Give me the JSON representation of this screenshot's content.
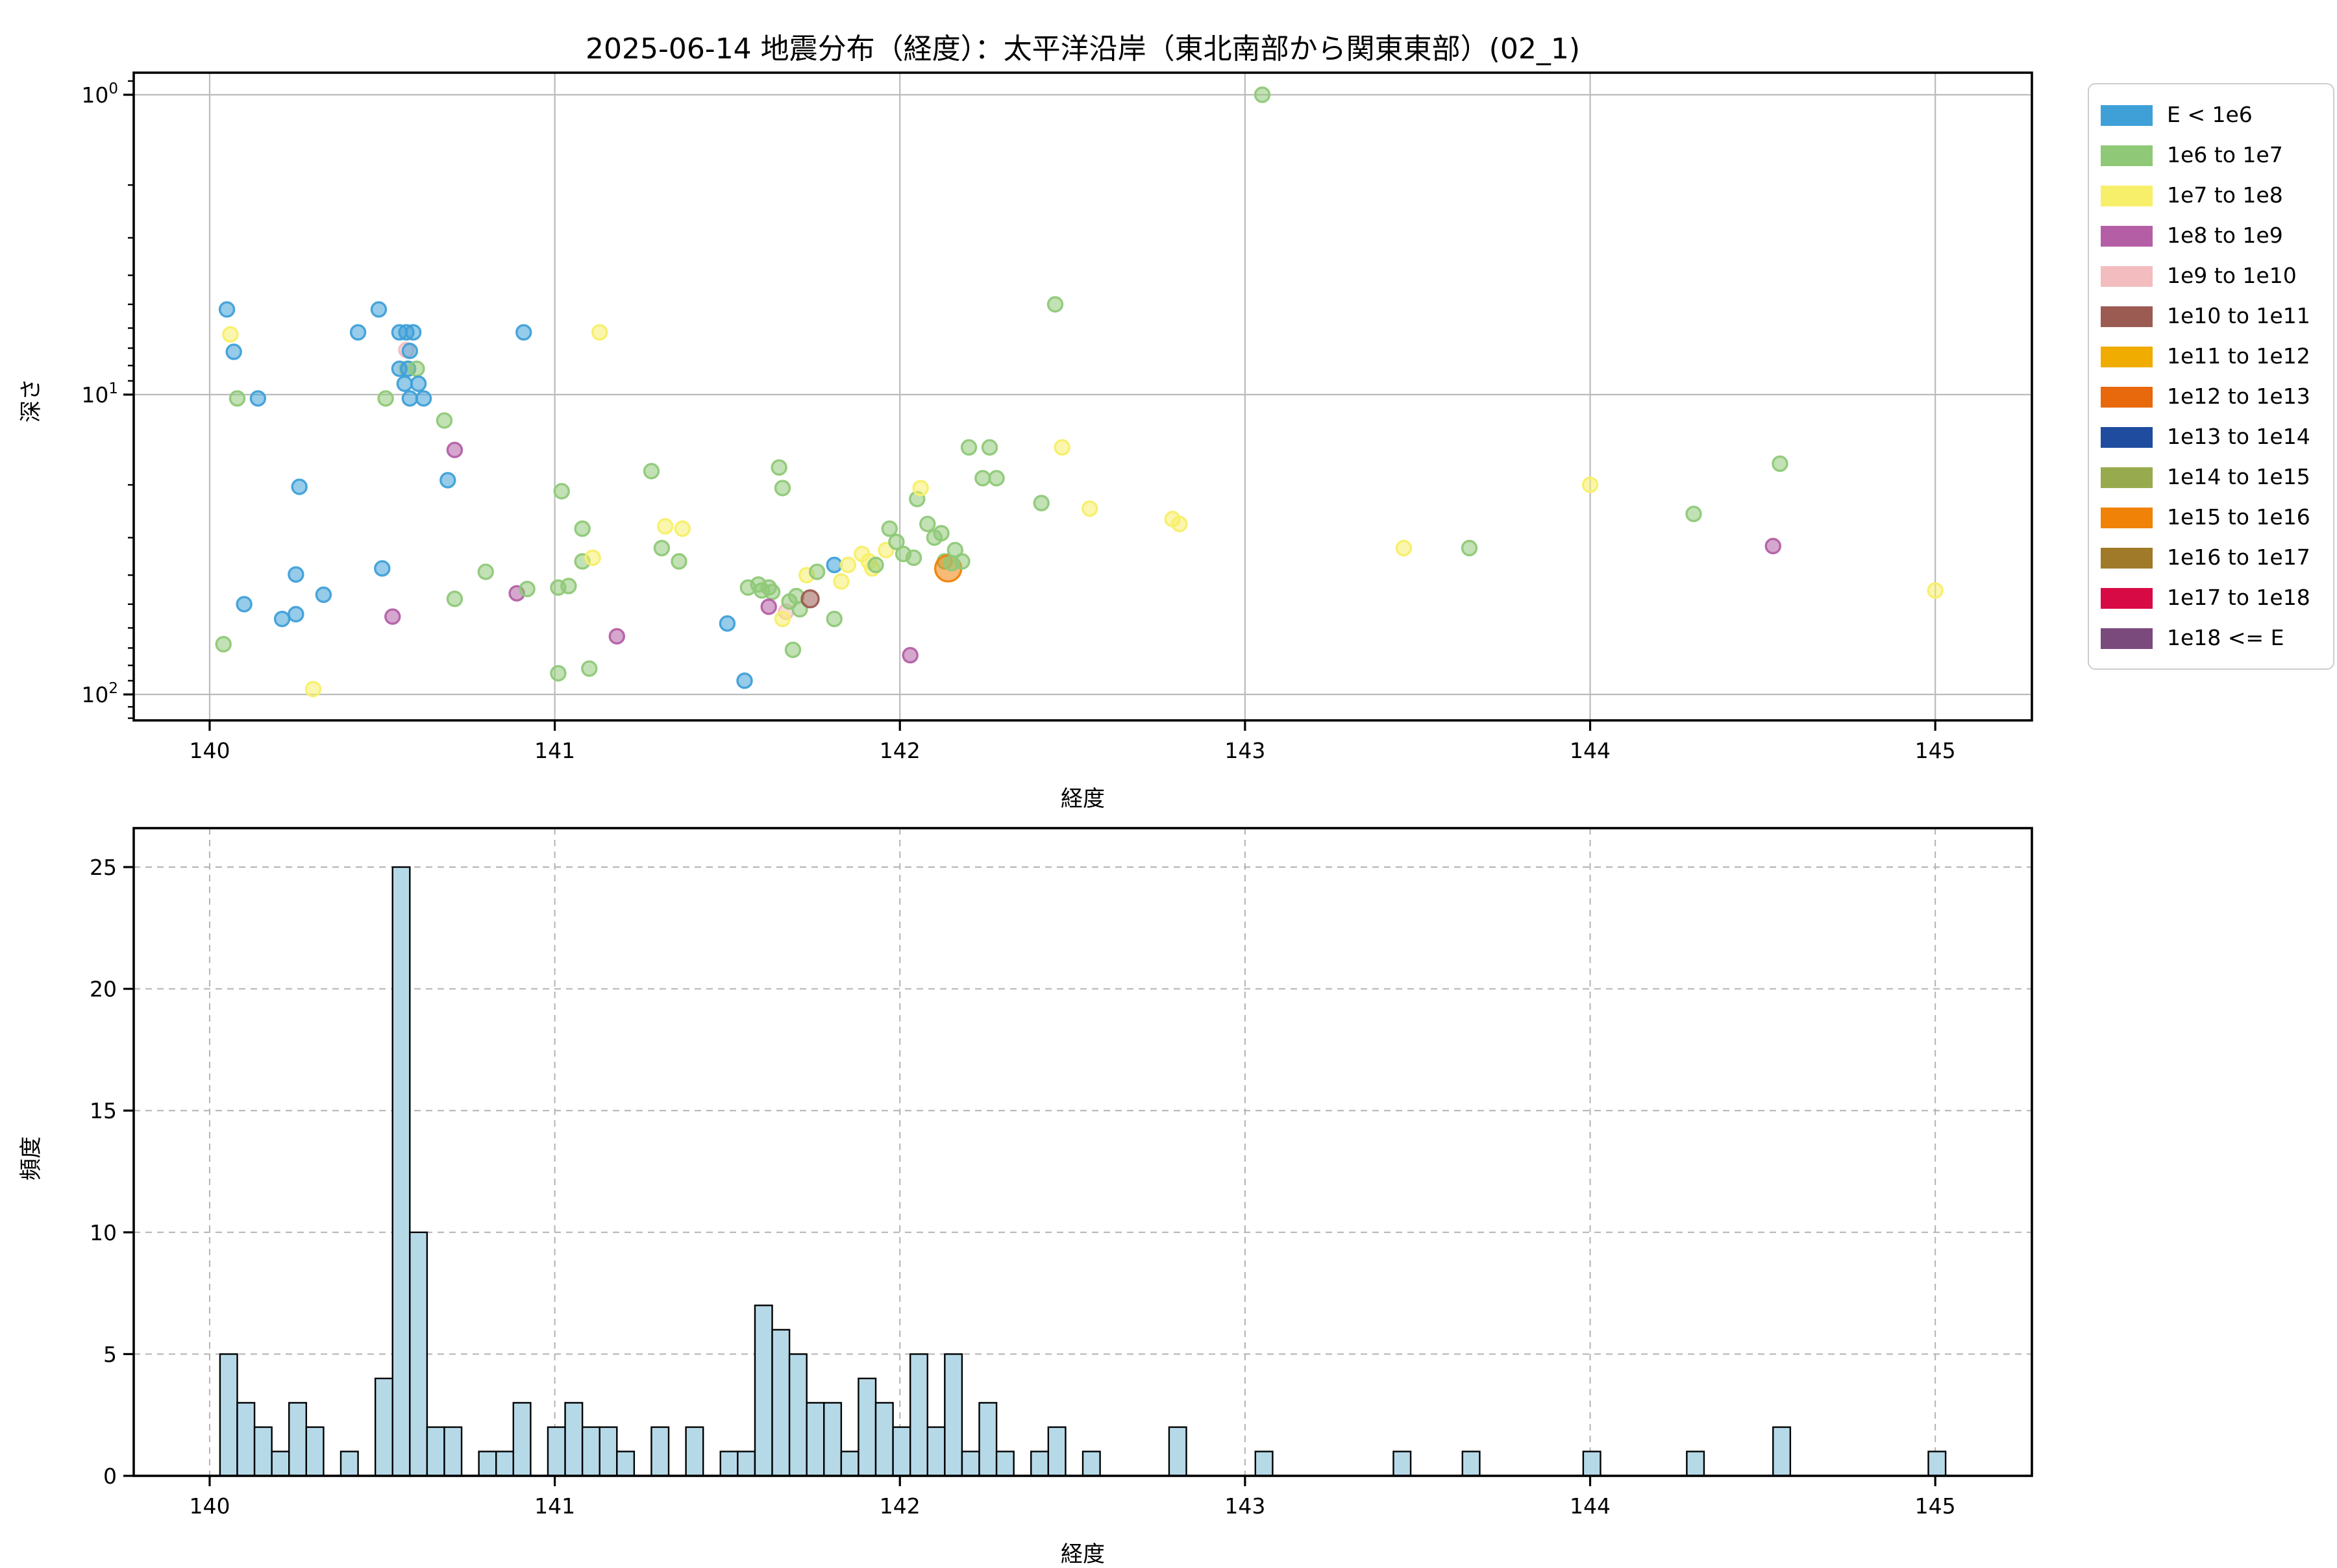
{
  "title": "2025-06-14 地震分布（経度）：太平洋沿岸（東北南部から関東東部）(02_1)",
  "top_chart": {
    "xlabel": "経度",
    "ylabel": "深さ",
    "xtick_labels": [
      "140",
      "141",
      "142",
      "143",
      "144",
      "145"
    ],
    "ytick_labels": [
      "10⁰",
      "10¹",
      "10²"
    ]
  },
  "bottom_chart": {
    "xlabel": "経度",
    "ylabel": "頻度",
    "xtick_labels": [
      "140",
      "141",
      "142",
      "143",
      "144",
      "145"
    ],
    "ytick_labels": [
      "0",
      "5",
      "10",
      "15",
      "20",
      "25"
    ]
  },
  "legend": {
    "items": [
      {
        "label": "E < 1e6",
        "color": "#3fa0d8"
      },
      {
        "label": "1e6 to 1e7",
        "color": "#8fc978"
      },
      {
        "label": "1e7 to 1e8",
        "color": "#f7ef69"
      },
      {
        "label": "1e8 to 1e9",
        "color": "#b45fa5"
      },
      {
        "label": "1e9 to 1e10",
        "color": "#f3bdbf"
      },
      {
        "label": "1e10 to 1e11",
        "color": "#9c5b52"
      },
      {
        "label": "1e11 to 1e12",
        "color": "#f0ac00"
      },
      {
        "label": "1e12 to 1e13",
        "color": "#e8680c"
      },
      {
        "label": "1e13 to 1e14",
        "color": "#1f4c9f"
      },
      {
        "label": "1e14 to 1e15",
        "color": "#97ab4e"
      },
      {
        "label": "1e15 to 1e16",
        "color": "#f08208"
      },
      {
        "label": "1e16 to 1e17",
        "color": "#a07a28"
      },
      {
        "label": "1e17 to 1e18",
        "color": "#d80a45"
      },
      {
        "label": "1e18 <= E",
        "color": "#7b4a7d"
      }
    ]
  },
  "colors": {
    "b": "#3fa0d8",
    "g": "#8fc978",
    "y": "#f7ef69",
    "m": "#b45fa5",
    "p": "#f3bdbf",
    "br": "#9c5b52",
    "o": "#f08208",
    "grid_solid": "#bbbbbb",
    "grid_dashed": "#b3b3b3",
    "bar_fill": "#b6d9e8",
    "bar_edge": "#000000",
    "spine": "#000000"
  },
  "chart_data": [
    {
      "type": "scatter",
      "name": "earthquake-depth-by-longitude",
      "title": "2025-06-14 地震分布（経度）：太平洋沿岸（東北南部から関東東部）(02_1)",
      "xlabel": "経度",
      "ylabel": "深さ",
      "xlim": [
        139.78,
        145.28
      ],
      "ylim_log_inverted": [
        0.84,
        122
      ],
      "xticks": [
        140,
        141,
        142,
        143,
        144,
        145
      ],
      "yticks": [
        1,
        10,
        100
      ],
      "yticks_minor": [
        0.9,
        2,
        3,
        4,
        5,
        6,
        7,
        8,
        9,
        20,
        30,
        40,
        50,
        60,
        70,
        80,
        90,
        110,
        120
      ],
      "grid": "solid",
      "legend_position": "upper right outside",
      "points_format": "[longitude, depth_km, energy_class, radius_px_optional]",
      "points": [
        [
          140.05,
          5.2,
          "b"
        ],
        [
          140.06,
          6.3,
          "y"
        ],
        [
          140.07,
          7.2,
          "b"
        ],
        [
          140.08,
          10.3,
          "g"
        ],
        [
          140.14,
          10.3,
          "b"
        ],
        [
          140.26,
          20.3,
          "b"
        ],
        [
          140.25,
          39.8,
          "b"
        ],
        [
          140.25,
          54,
          "b"
        ],
        [
          140.21,
          56,
          "b"
        ],
        [
          140.1,
          50,
          "b"
        ],
        [
          140.04,
          68,
          "g"
        ],
        [
          140.3,
          96,
          "y"
        ],
        [
          140.33,
          46.5,
          "b"
        ],
        [
          140.5,
          38,
          "b"
        ],
        [
          140.53,
          55,
          "m"
        ],
        [
          140.49,
          5.2,
          "b"
        ],
        [
          140.43,
          6.2,
          "b"
        ],
        [
          140.55,
          6.2,
          "b"
        ],
        [
          140.57,
          6.2,
          "b"
        ],
        [
          140.59,
          6.2,
          "b"
        ],
        [
          140.57,
          7.1,
          "p"
        ],
        [
          140.58,
          7.15,
          "b"
        ],
        [
          140.57,
          8.2,
          "y"
        ],
        [
          140.55,
          8.2,
          "b"
        ],
        [
          140.575,
          8.2,
          "b"
        ],
        [
          140.6,
          8.2,
          "g"
        ],
        [
          140.565,
          9.2,
          "b"
        ],
        [
          140.605,
          9.2,
          "b"
        ],
        [
          140.51,
          10.3,
          "g"
        ],
        [
          140.58,
          10.3,
          "b"
        ],
        [
          140.62,
          10.3,
          "b"
        ],
        [
          140.68,
          12.2,
          "g"
        ],
        [
          140.71,
          15.3,
          "m"
        ],
        [
          140.69,
          19.3,
          "b"
        ],
        [
          140.8,
          39,
          "g"
        ],
        [
          140.89,
          46,
          "m"
        ],
        [
          140.92,
          44.5,
          "g"
        ],
        [
          140.71,
          48,
          "g"
        ],
        [
          140.91,
          6.2,
          "b"
        ],
        [
          141.13,
          6.2,
          "y"
        ],
        [
          141.02,
          21,
          "g"
        ],
        [
          141.08,
          28,
          "g"
        ],
        [
          141.08,
          36,
          "g"
        ],
        [
          141.11,
          35,
          "y"
        ],
        [
          141.01,
          44,
          "g"
        ],
        [
          141.04,
          43.5,
          "g"
        ],
        [
          141.01,
          85,
          "g"
        ],
        [
          141.1,
          82,
          "g"
        ],
        [
          141.18,
          64,
          "m"
        ],
        [
          141.28,
          18,
          "g"
        ],
        [
          141.32,
          27.5,
          "y"
        ],
        [
          141.37,
          28,
          "y"
        ],
        [
          141.31,
          32.5,
          "g"
        ],
        [
          141.36,
          36,
          "g"
        ],
        [
          141.5,
          58,
          "b"
        ],
        [
          141.55,
          90,
          "b"
        ],
        [
          141.56,
          44,
          "g"
        ],
        [
          141.59,
          43,
          "g"
        ],
        [
          141.6,
          45,
          "g"
        ],
        [
          141.62,
          44,
          "g"
        ],
        [
          141.63,
          45.5,
          "g"
        ],
        [
          141.62,
          51,
          "m"
        ],
        [
          141.67,
          53,
          "p"
        ],
        [
          141.66,
          56,
          "y"
        ],
        [
          141.68,
          49,
          "g"
        ],
        [
          141.7,
          47,
          "g"
        ],
        [
          141.71,
          52,
          "g"
        ],
        [
          141.74,
          48,
          "br",
          6.5
        ],
        [
          141.81,
          56,
          "g"
        ],
        [
          141.69,
          71,
          "g"
        ],
        [
          141.65,
          17.5,
          "g"
        ],
        [
          141.66,
          20.5,
          "g"
        ],
        [
          141.73,
          40,
          "y"
        ],
        [
          141.76,
          39,
          "g"
        ],
        [
          141.81,
          37,
          "b"
        ],
        [
          141.83,
          42,
          "y"
        ],
        [
          141.85,
          37,
          "y"
        ],
        [
          141.89,
          34,
          "y"
        ],
        [
          141.91,
          36,
          "y"
        ],
        [
          141.92,
          38,
          "y"
        ],
        [
          141.93,
          37,
          "g"
        ],
        [
          141.96,
          33,
          "y"
        ],
        [
          141.97,
          28,
          "g"
        ],
        [
          141.99,
          31,
          "g"
        ],
        [
          142.01,
          34,
          "g"
        ],
        [
          142.04,
          35,
          "g"
        ],
        [
          142.05,
          22.3,
          "g"
        ],
        [
          142.06,
          20.5,
          "y"
        ],
        [
          142.08,
          27,
          "g"
        ],
        [
          142.1,
          30,
          "g"
        ],
        [
          142.12,
          29,
          "g"
        ],
        [
          142.13,
          36,
          "g"
        ],
        [
          142.14,
          38,
          "o",
          10
        ],
        [
          142.15,
          36.5,
          "g"
        ],
        [
          142.18,
          36,
          "g"
        ],
        [
          142.16,
          33,
          "g"
        ],
        [
          142.03,
          74,
          "m"
        ],
        [
          142.2,
          15,
          "g"
        ],
        [
          142.26,
          15,
          "g"
        ],
        [
          142.24,
          19,
          "g"
        ],
        [
          142.28,
          19,
          "g"
        ],
        [
          142.41,
          23,
          "g"
        ],
        [
          142.47,
          15,
          "y"
        ],
        [
          142.45,
          5.0,
          "g"
        ],
        [
          142.55,
          24,
          "y"
        ],
        [
          142.79,
          26,
          "y"
        ],
        [
          142.81,
          27,
          "y"
        ],
        [
          143.05,
          1.0,
          "g"
        ],
        [
          143.46,
          32.5,
          "y"
        ],
        [
          143.65,
          32.5,
          "g"
        ],
        [
          144.0,
          20,
          "y"
        ],
        [
          144.3,
          25,
          "g"
        ],
        [
          144.55,
          17,
          "g"
        ],
        [
          144.53,
          32,
          "m"
        ],
        [
          145.0,
          45,
          "y"
        ]
      ]
    },
    {
      "type": "bar",
      "name": "earthquake-longitude-histogram",
      "xlabel": "経度",
      "ylabel": "頻度",
      "xlim": [
        139.78,
        145.28
      ],
      "ylim": [
        0,
        26.3
      ],
      "xticks": [
        140,
        141,
        142,
        143,
        144,
        145
      ],
      "yticks": [
        0,
        5,
        10,
        15,
        20,
        25
      ],
      "grid": "dashed",
      "bin_width": 0.05,
      "bins_format": "[left_edge_longitude, count] (empty bins omitted)",
      "bins": [
        [
          140.03,
          5
        ],
        [
          140.08,
          3
        ],
        [
          140.13,
          2
        ],
        [
          140.18,
          1
        ],
        [
          140.23,
          3
        ],
        [
          140.28,
          2
        ],
        [
          140.38,
          1
        ],
        [
          140.48,
          4
        ],
        [
          140.53,
          25
        ],
        [
          140.58,
          10
        ],
        [
          140.63,
          2
        ],
        [
          140.68,
          2
        ],
        [
          140.78,
          1
        ],
        [
          140.83,
          1
        ],
        [
          140.88,
          3
        ],
        [
          140.98,
          2
        ],
        [
          141.03,
          3
        ],
        [
          141.08,
          2
        ],
        [
          141.13,
          2
        ],
        [
          141.18,
          1
        ],
        [
          141.28,
          2
        ],
        [
          141.38,
          2
        ],
        [
          141.48,
          1
        ],
        [
          141.53,
          1
        ],
        [
          141.58,
          7
        ],
        [
          141.63,
          6
        ],
        [
          141.68,
          5
        ],
        [
          141.73,
          3
        ],
        [
          141.78,
          3
        ],
        [
          141.83,
          1
        ],
        [
          141.88,
          4
        ],
        [
          141.93,
          3
        ],
        [
          141.98,
          2
        ],
        [
          142.03,
          5
        ],
        [
          142.08,
          2
        ],
        [
          142.13,
          5
        ],
        [
          142.18,
          1
        ],
        [
          142.23,
          3
        ],
        [
          142.28,
          1
        ],
        [
          142.38,
          1
        ],
        [
          142.43,
          2
        ],
        [
          142.53,
          1
        ],
        [
          142.78,
          2
        ],
        [
          143.03,
          1
        ],
        [
          143.43,
          1
        ],
        [
          143.63,
          1
        ],
        [
          143.98,
          1
        ],
        [
          144.28,
          1
        ],
        [
          144.53,
          2
        ],
        [
          144.98,
          1
        ]
      ]
    }
  ]
}
